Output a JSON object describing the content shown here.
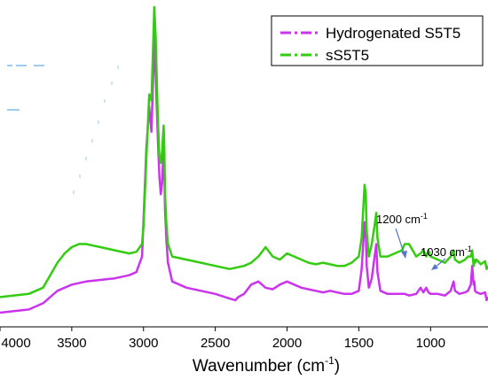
{
  "chart_data": {
    "type": "line",
    "title": "",
    "xlabel": "Wavenumber (cm-1)",
    "xlabel_main": "Wavenumber (cm",
    "xlabel_sup": "-1",
    "xlabel_end": ")",
    "ylabel": "",
    "xlim": [
      4000,
      600
    ],
    "x_reversed": true,
    "x_ticks": [
      4000,
      3500,
      3000,
      2500,
      2000,
      1500,
      1000
    ],
    "y_ticks_shown": false,
    "legend_position": "top-right",
    "series": [
      {
        "name": "Hydrogenated S5T5",
        "color": "#cc33ee",
        "x": [
          4000,
          3800,
          3700,
          3600,
          3500,
          3400,
          3300,
          3200,
          3100,
          3050,
          3010,
          3000,
          2980,
          2960,
          2945,
          2935,
          2925,
          2915,
          2900,
          2890,
          2880,
          2870,
          2860,
          2855,
          2850,
          2840,
          2830,
          2800,
          2700,
          2600,
          2500,
          2400,
          2360,
          2340,
          2300,
          2250,
          2200,
          2150,
          2100,
          2050,
          2000,
          1950,
          1900,
          1850,
          1800,
          1750,
          1700,
          1650,
          1600,
          1550,
          1500,
          1480,
          1460,
          1452,
          1445,
          1430,
          1410,
          1390,
          1378,
          1370,
          1350,
          1300,
          1250,
          1200,
          1180,
          1150,
          1100,
          1070,
          1050,
          1030,
          1015,
          1000,
          950,
          900,
          860,
          840,
          830,
          800,
          760,
          740,
          720,
          710,
          700,
          695,
          690,
          680,
          650,
          620,
          610,
          600
        ],
        "y": [
          0.02,
          0.03,
          0.05,
          0.09,
          0.11,
          0.12,
          0.125,
          0.13,
          0.14,
          0.15,
          0.2,
          0.32,
          0.55,
          0.68,
          0.6,
          0.75,
          0.9,
          0.78,
          0.58,
          0.46,
          0.4,
          0.44,
          0.55,
          0.48,
          0.35,
          0.25,
          0.18,
          0.12,
          0.1,
          0.09,
          0.08,
          0.065,
          0.06,
          0.07,
          0.08,
          0.11,
          0.12,
          0.1,
          0.095,
          0.11,
          0.12,
          0.11,
          0.1,
          0.095,
          0.09,
          0.085,
          0.09,
          0.085,
          0.08,
          0.08,
          0.09,
          0.16,
          0.31,
          0.28,
          0.17,
          0.1,
          0.13,
          0.2,
          0.24,
          0.15,
          0.09,
          0.08,
          0.08,
          0.08,
          0.08,
          0.075,
          0.08,
          0.1,
          0.085,
          0.1,
          0.085,
          0.08,
          0.08,
          0.075,
          0.09,
          0.12,
          0.09,
          0.08,
          0.085,
          0.09,
          0.11,
          0.17,
          0.11,
          0.12,
          0.09,
          0.085,
          0.08,
          0.085,
          0.06,
          0.07
        ]
      },
      {
        "name": "sS5T5",
        "color": "#33cc11",
        "x": [
          4000,
          3800,
          3700,
          3650,
          3600,
          3550,
          3500,
          3450,
          3400,
          3350,
          3300,
          3200,
          3100,
          3050,
          3010,
          3000,
          2980,
          2960,
          2945,
          2935,
          2925,
          2915,
          2900,
          2890,
          2880,
          2870,
          2860,
          2855,
          2850,
          2840,
          2830,
          2800,
          2700,
          2600,
          2500,
          2400,
          2300,
          2250,
          2200,
          2150,
          2100,
          2050,
          2000,
          1950,
          1900,
          1850,
          1800,
          1750,
          1700,
          1650,
          1600,
          1550,
          1500,
          1480,
          1460,
          1452,
          1445,
          1430,
          1410,
          1390,
          1378,
          1370,
          1350,
          1300,
          1250,
          1200,
          1180,
          1150,
          1100,
          1070,
          1050,
          1030,
          1015,
          1000,
          950,
          900,
          860,
          840,
          830,
          800,
          760,
          740,
          720,
          710,
          700,
          695,
          690,
          680,
          650,
          620,
          610,
          600
        ],
        "y": [
          0.07,
          0.08,
          0.1,
          0.14,
          0.18,
          0.21,
          0.23,
          0.24,
          0.24,
          0.235,
          0.23,
          0.22,
          0.21,
          0.215,
          0.24,
          0.3,
          0.52,
          0.72,
          0.7,
          0.85,
          1.0,
          0.9,
          0.64,
          0.52,
          0.5,
          0.54,
          0.62,
          0.55,
          0.4,
          0.3,
          0.24,
          0.2,
          0.19,
          0.18,
          0.17,
          0.16,
          0.17,
          0.18,
          0.2,
          0.23,
          0.2,
          0.19,
          0.21,
          0.2,
          0.19,
          0.18,
          0.175,
          0.18,
          0.175,
          0.17,
          0.17,
          0.18,
          0.2,
          0.26,
          0.43,
          0.4,
          0.28,
          0.2,
          0.24,
          0.3,
          0.34,
          0.26,
          0.2,
          0.2,
          0.21,
          0.22,
          0.24,
          0.24,
          0.2,
          0.21,
          0.22,
          0.2,
          0.22,
          0.2,
          0.19,
          0.18,
          0.2,
          0.22,
          0.19,
          0.18,
          0.19,
          0.2,
          0.2,
          0.22,
          0.17,
          0.19,
          0.18,
          0.19,
          0.175,
          0.185,
          0.16,
          0.17
        ]
      }
    ],
    "annotations": [
      {
        "text_main": "1200 cm",
        "text_sup": "-1",
        "x": 1200,
        "y": 0.26
      },
      {
        "text_main": "1030 cm",
        "text_sup": "-1",
        "x": 1030,
        "y": 0.23
      }
    ]
  }
}
